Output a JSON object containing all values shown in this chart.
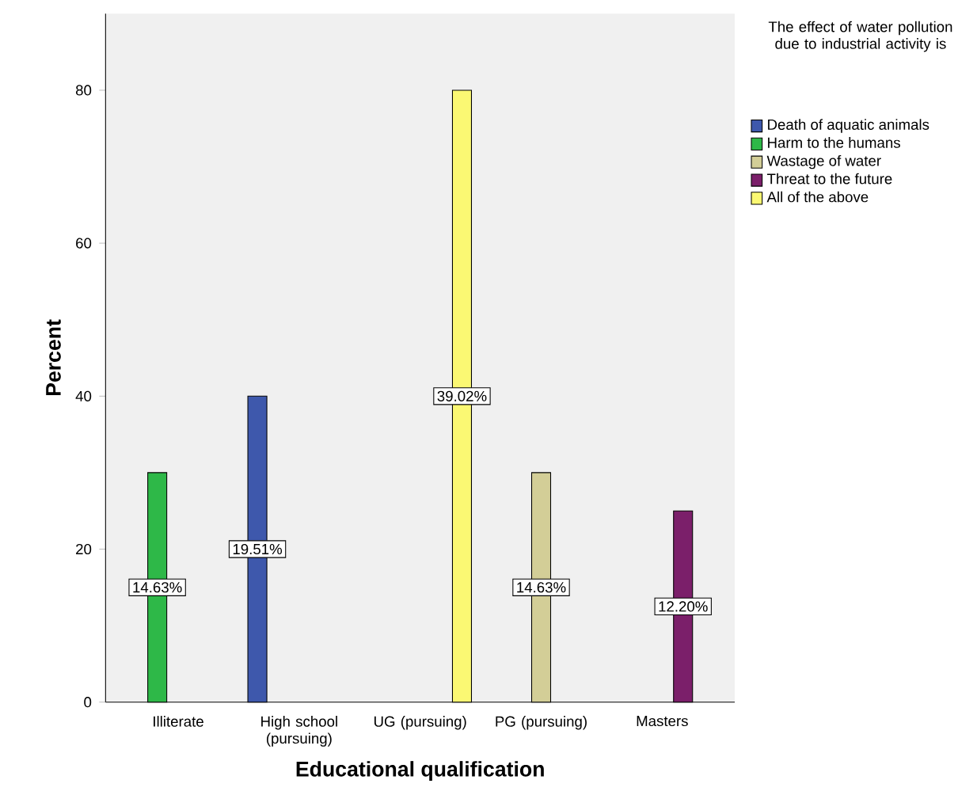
{
  "chart_data": {
    "type": "bar",
    "xlabel": "Educational qualification",
    "ylabel": "Percent",
    "legend_title": "The effect of water pollution due to industrial activity is",
    "categories": [
      "Illiterate",
      "High school (pursuing)",
      "UG (pursuing)",
      "PG (pursuing)",
      "Masters"
    ],
    "series": [
      {
        "name": "Death of aquatic animals",
        "color": "#3e58ac",
        "values": [
          null,
          40,
          null,
          null,
          null
        ]
      },
      {
        "name": "Harm to the humans",
        "color": "#2eb848",
        "values": [
          30,
          null,
          null,
          null,
          null
        ]
      },
      {
        "name": "Wastage of water",
        "color": "#d3ce97",
        "values": [
          null,
          null,
          null,
          30,
          null
        ]
      },
      {
        "name": "Threat to the future",
        "color": "#7b1f6a",
        "values": [
          null,
          null,
          null,
          null,
          25
        ]
      },
      {
        "name": "All of the above",
        "color": "#fbf873",
        "values": [
          null,
          null,
          80,
          null,
          null
        ]
      }
    ],
    "annotations": [
      "14.63%",
      "19.51%",
      "39.02%",
      "14.63%",
      "12.20%"
    ],
    "ylim": [
      0,
      90
    ],
    "yticks": [
      0,
      20,
      40,
      60,
      80
    ],
    "grid": false,
    "legend": "top right"
  }
}
